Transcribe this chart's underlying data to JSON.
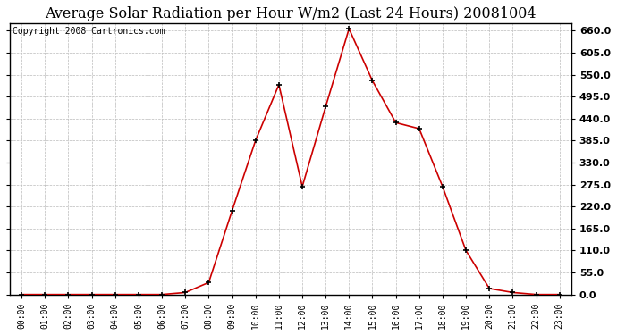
{
  "title": "Average Solar Radiation per Hour W/m2 (Last 24 Hours) 20081004",
  "copyright": "Copyright 2008 Cartronics.com",
  "x_labels": [
    "00:00",
    "01:00",
    "02:00",
    "03:00",
    "04:00",
    "05:00",
    "06:00",
    "07:00",
    "08:00",
    "09:00",
    "10:00",
    "11:00",
    "12:00",
    "13:00",
    "14:00",
    "15:00",
    "16:00",
    "17:00",
    "18:00",
    "19:00",
    "20:00",
    "21:00",
    "22:00",
    "23:00"
  ],
  "y_values": [
    0.0,
    0.0,
    0.0,
    0.0,
    0.0,
    0.0,
    0.0,
    5.0,
    30.0,
    210.0,
    385.0,
    525.0,
    270.0,
    470.0,
    665.0,
    535.0,
    430.0,
    415.0,
    270.0,
    110.0,
    15.0,
    5.0,
    0.0,
    0.0
  ],
  "y_ticks": [
    0.0,
    55.0,
    110.0,
    165.0,
    220.0,
    275.0,
    330.0,
    385.0,
    440.0,
    495.0,
    550.0,
    605.0,
    660.0
  ],
  "ylim": [
    0,
    680
  ],
  "line_color": "#cc0000",
  "marker_color": "#000000",
  "bg_color": "#ffffff",
  "grid_color": "#bbbbbb",
  "title_fontsize": 11.5,
  "copyright_fontsize": 7,
  "tick_fontsize": 8,
  "xtick_fontsize": 7
}
